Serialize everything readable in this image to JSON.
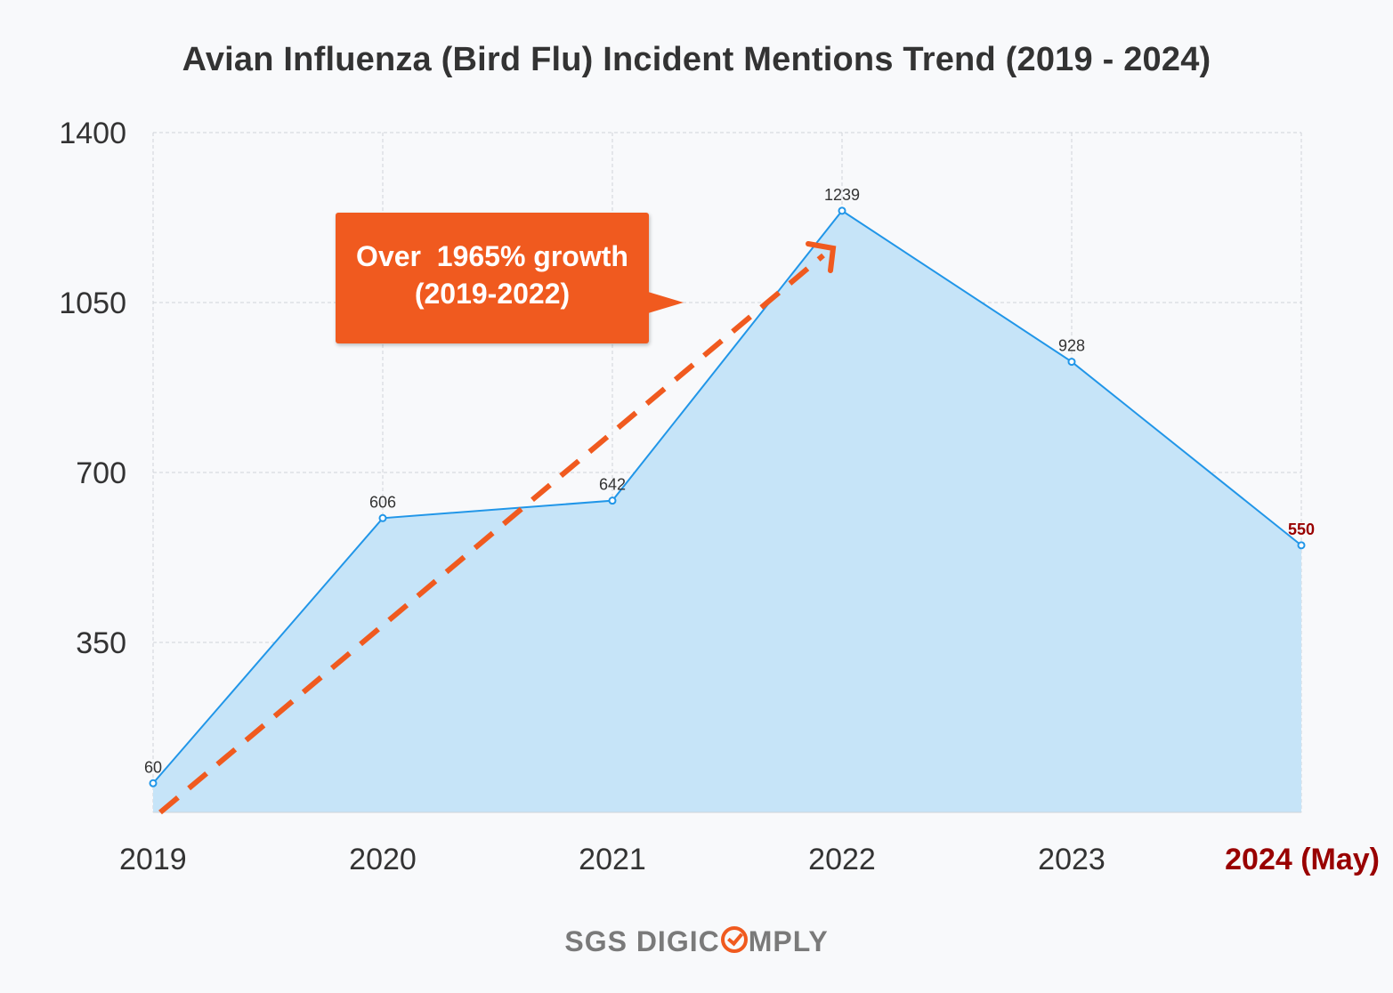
{
  "chart_data": {
    "type": "area",
    "title": "Avian Influenza (Bird Flu) Incident Mentions Trend (2019 - 2024)",
    "categories": [
      "2019",
      "2020",
      "2021",
      "2022",
      "2023",
      "2024 (May)"
    ],
    "values": [
      60,
      606,
      642,
      1239,
      928,
      550
    ],
    "data_labels": [
      "60",
      "606",
      "642",
      "1239",
      "928",
      "550"
    ],
    "highlight_index": 5,
    "highlight_color": "#990000",
    "ylim": [
      0,
      1400
    ],
    "yticks": [
      "350",
      "700",
      "1050",
      "1400"
    ],
    "grid": true,
    "line_color": "#2196e8",
    "fill_color": "#c6e4f8",
    "trend_arrow_color": "#f05a1f",
    "annotation": "Over  1965% growth\n(2019-2022)"
  },
  "brand": {
    "left": "SGS DIGIC",
    "right": "MPLY",
    "accent": "#f05a1f"
  }
}
